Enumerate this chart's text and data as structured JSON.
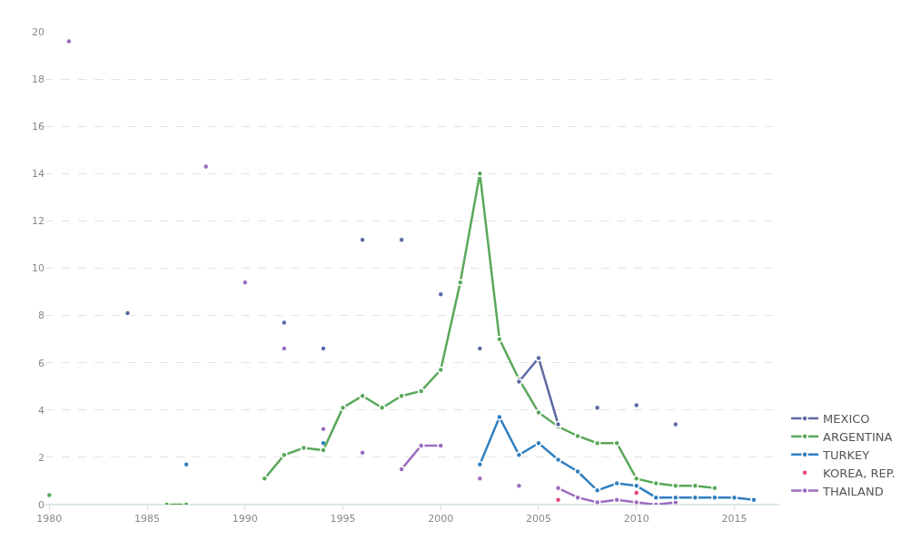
{
  "chart_data": {
    "type": "line",
    "x": [
      1980,
      1981,
      1982,
      1983,
      1984,
      1985,
      1986,
      1987,
      1988,
      1989,
      1990,
      1991,
      1992,
      1993,
      1994,
      1995,
      1996,
      1997,
      1998,
      1999,
      2000,
      2001,
      2002,
      2003,
      2004,
      2005,
      2006,
      2007,
      2008,
      2009,
      2010,
      2011,
      2012,
      2013,
      2014,
      2015,
      2016
    ],
    "series": [
      {
        "name": "MEXICO",
        "color": "#5b6aa3",
        "values": [
          null,
          null,
          null,
          null,
          8.1,
          null,
          null,
          null,
          null,
          null,
          null,
          null,
          7.7,
          null,
          6.6,
          null,
          11.2,
          null,
          11.2,
          null,
          8.9,
          null,
          6.6,
          null,
          5.2,
          6.2,
          3.4,
          null,
          4.1,
          null,
          4.2,
          null,
          3.4,
          null,
          null,
          null,
          null
        ]
      },
      {
        "name": "ARGENTINA",
        "color": "#5aa85a",
        "values": [
          0.4,
          null,
          null,
          null,
          null,
          null,
          0,
          0,
          null,
          null,
          null,
          1.1,
          2.1,
          2.4,
          2.3,
          4.1,
          4.6,
          4.1,
          4.6,
          4.8,
          5.7,
          9.4,
          14,
          7,
          5.3,
          3.9,
          3.3,
          2.9,
          2.6,
          2.6,
          1.1,
          0.9,
          0.8,
          0.8,
          0.7,
          null,
          null
        ]
      },
      {
        "name": "TURKEY",
        "color": "#2f7fc0",
        "values": [
          null,
          null,
          null,
          null,
          null,
          null,
          null,
          1.7,
          null,
          null,
          null,
          null,
          null,
          null,
          2.6,
          null,
          null,
          null,
          null,
          null,
          null,
          null,
          1.7,
          3.7,
          2.1,
          2.6,
          1.9,
          1.4,
          0.6,
          0.9,
          0.8,
          0.3,
          0.3,
          0.3,
          0.3,
          0.3,
          0.2
        ]
      },
      {
        "name": "KOREA, REP.",
        "type": "scatter",
        "color": "#e8457a",
        "values": [
          null,
          null,
          null,
          null,
          null,
          null,
          null,
          null,
          null,
          null,
          null,
          null,
          null,
          null,
          null,
          null,
          null,
          null,
          null,
          null,
          null,
          null,
          null,
          null,
          null,
          null,
          0.2,
          null,
          null,
          null,
          0.5,
          null,
          null,
          null,
          null,
          null,
          null
        ]
      },
      {
        "name": "THAILAND",
        "color": "#9b6cc0",
        "values": [
          null,
          19.6,
          null,
          null,
          null,
          null,
          null,
          null,
          14.3,
          null,
          9.4,
          null,
          6.6,
          null,
          3.2,
          null,
          2.2,
          null,
          1.5,
          2.5,
          2.5,
          null,
          1.1,
          null,
          0.8,
          null,
          0.7,
          0.3,
          0.1,
          0.2,
          0.1,
          0,
          0.1,
          null,
          null,
          null,
          null
        ]
      }
    ],
    "xlim": [
      1979.8,
      2017.3
    ],
    "xticks": [
      1980,
      1985,
      1990,
      1995,
      2000,
      2005,
      2010,
      2015
    ],
    "ylim": [
      0,
      20
    ],
    "yticks": [
      0,
      2,
      4,
      6,
      8,
      10,
      12,
      14,
      16,
      18,
      20
    ],
    "grid": "y",
    "legend": "right",
    "marker": "circle",
    "line_style": "solid"
  }
}
